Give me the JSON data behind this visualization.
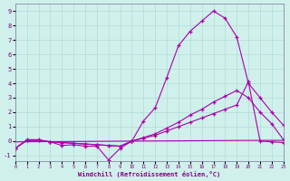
{
  "xlabel": "Windchill (Refroidissement éolien,°C)",
  "xlim": [
    0,
    23
  ],
  "ylim": [
    -1.4,
    9.5
  ],
  "yticks": [
    -1,
    0,
    1,
    2,
    3,
    4,
    5,
    6,
    7,
    8,
    9
  ],
  "xticks": [
    0,
    1,
    2,
    3,
    4,
    5,
    6,
    7,
    8,
    9,
    10,
    11,
    12,
    13,
    14,
    15,
    16,
    17,
    18,
    19,
    20,
    21,
    22,
    23
  ],
  "bg_color": "#d0f0ec",
  "grid_color": "#a8d8d0",
  "line_color": "#aa00aa",
  "line1_x": [
    0,
    1,
    2,
    3,
    4,
    5,
    6,
    7,
    8,
    9,
    10,
    11,
    12,
    13,
    14,
    15,
    16,
    17,
    18,
    19,
    20,
    21,
    22,
    23
  ],
  "line1_y": [
    -0.5,
    0.1,
    0.1,
    -0.05,
    -0.3,
    -0.25,
    -0.35,
    -0.35,
    -1.3,
    -0.5,
    0.0,
    1.4,
    2.3,
    4.4,
    6.6,
    7.6,
    8.3,
    9.0,
    8.5,
    7.2,
    4.0,
    3.0,
    2.0,
    1.1
  ],
  "line2_x": [
    0,
    1,
    2,
    3,
    4,
    5,
    6,
    7,
    8,
    9,
    10,
    11,
    12,
    13,
    14,
    15,
    16,
    17,
    18,
    19,
    20,
    21,
    22,
    23
  ],
  "line2_y": [
    -0.5,
    0.05,
    0.05,
    -0.05,
    -0.1,
    -0.15,
    -0.2,
    -0.25,
    -0.3,
    -0.35,
    0.0,
    0.25,
    0.5,
    0.9,
    1.3,
    1.8,
    2.2,
    2.7,
    3.1,
    3.5,
    3.0,
    2.0,
    1.2,
    0.1
  ],
  "line3_x": [
    0,
    10,
    20,
    23
  ],
  "line3_y": [
    -0.05,
    0.0,
    0.05,
    0.05
  ],
  "line4_x": [
    0,
    1,
    2,
    3,
    4,
    5,
    6,
    7,
    8,
    9,
    10,
    11,
    12,
    13,
    14,
    15,
    16,
    17,
    18,
    19,
    20,
    21,
    22,
    23
  ],
  "line4_y": [
    -0.5,
    0.05,
    0.05,
    -0.05,
    -0.1,
    -0.15,
    -0.2,
    -0.25,
    -0.3,
    -0.35,
    0.0,
    0.2,
    0.4,
    0.7,
    1.0,
    1.3,
    1.6,
    1.9,
    2.2,
    2.5,
    4.1,
    0.0,
    -0.05,
    -0.1
  ]
}
